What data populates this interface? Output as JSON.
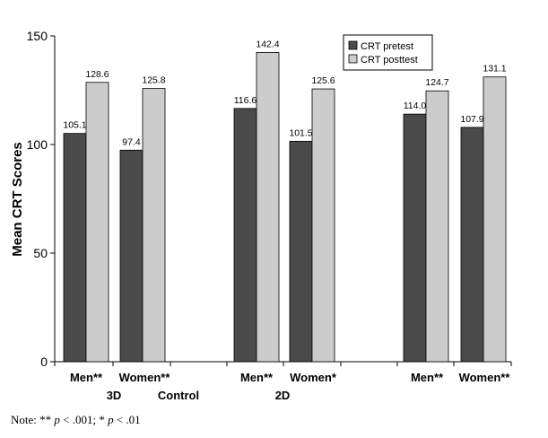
{
  "chart_data": {
    "type": "bar",
    "ylabel": "Mean CRT Scores",
    "ylim": [
      0,
      150
    ],
    "yticks": [
      0,
      50,
      100,
      150
    ],
    "categories": [
      "Men**",
      "Women**",
      "Men**",
      "Women*",
      "Men**",
      "Women**"
    ],
    "group_labels": [
      "3D",
      "Control",
      "2D"
    ],
    "series": [
      {
        "name": "CRT pretest",
        "color": "#4a4a4a",
        "values": [
          105.1,
          97.4,
          116.6,
          101.5,
          114.0,
          107.9
        ]
      },
      {
        "name": "CRT posttest",
        "color": "#cccccc",
        "values": [
          128.6,
          125.8,
          142.4,
          125.6,
          124.7,
          131.1
        ]
      }
    ],
    "value_labels": [
      [
        "105.1",
        "97.4",
        "116.6",
        "101.5",
        "114.0",
        "107.9"
      ],
      [
        "128.6",
        "125.8",
        "142.4",
        "125.6",
        "124.7",
        "131.1"
      ]
    ],
    "legend_position": "top-right",
    "grid": false
  },
  "note": {
    "prefix": "Note: ** ",
    "p1": "p",
    "mid": " < .001; * ",
    "p2": "p",
    "suffix": " < .01"
  }
}
